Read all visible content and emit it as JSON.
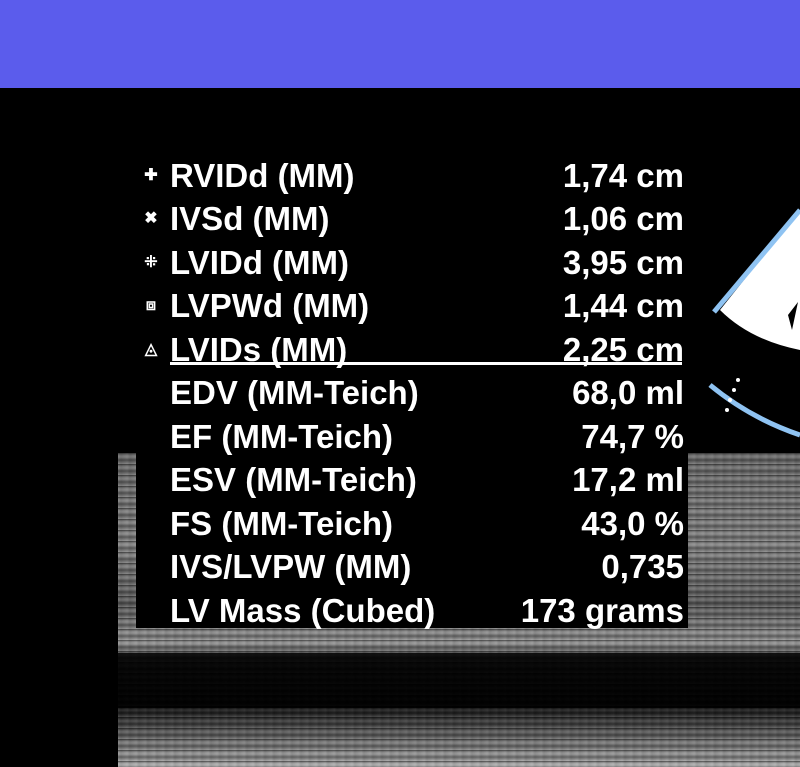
{
  "colors": {
    "header_bar": "#5b5cec",
    "background": "#000000",
    "text": "#ffffff",
    "sector_outline": "#8fc3f2"
  },
  "measurements": [
    {
      "symbol": "plus-marker-icon",
      "glyph": "✚",
      "label": "RVIDd (MM)",
      "value": "1,74 cm"
    },
    {
      "symbol": "x-marker-icon",
      "glyph": "✖",
      "label": "IVSd (MM)",
      "value": "1,06 cm"
    },
    {
      "symbol": "dotted-cross-marker-icon",
      "glyph": "⁜",
      "label": "LVIDd (MM)",
      "value": "3,95 cm"
    },
    {
      "symbol": "square-marker-icon",
      "glyph": "⧈",
      "label": "LVPWd (MM)",
      "value": "1,44 cm"
    },
    {
      "symbol": "triangle-marker-icon",
      "glyph": "◬",
      "label": "LVIDs (MM)",
      "value": "2,25 cm"
    }
  ],
  "calculations": [
    {
      "label": "EDV (MM-Teich)",
      "value": "68,0 ml"
    },
    {
      "label": "EF (MM-Teich)",
      "value": "74,7 %"
    },
    {
      "label": "ESV (MM-Teich)",
      "value": "17,2 ml"
    },
    {
      "label": "FS (MM-Teich)",
      "value": "43,0 %"
    },
    {
      "label": "IVS/LVPW (MM)",
      "value": "0,735"
    },
    {
      "label": "LV Mass (Cubed)",
      "value": "173 grams"
    }
  ]
}
